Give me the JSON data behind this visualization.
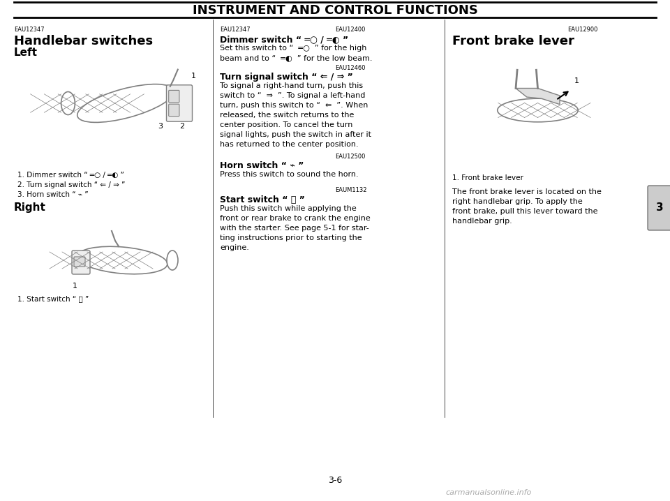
{
  "title": "INSTRUMENT AND CONTROL FUNCTIONS",
  "bg_color": "#ffffff",
  "title_color": "#000000",
  "body_color": "#000000",
  "page_number": "3-6",
  "tab_label": "3",
  "left_col": {
    "section_code": "EAU12347",
    "section_title": "Handlebar switches",
    "subsection1": "Left",
    "left_items": [
      "1. Dimmer switch “ ═○ / ═◐ ”",
      "2. Turn signal switch “ ⇐ / ⇒ ”",
      "3. Horn switch “ ⌁ ”"
    ],
    "subsection2": "Right",
    "right_items": [
      "1. Start switch “ Ⓢ ”"
    ]
  },
  "mid_col": {
    "code1": "EAU12400",
    "head1": "Dimmer switch",
    "sym1": "“ ═○ / ═◐ ”",
    "body1": "Set this switch to “  ═○  ” for the high\nbeam and to “  ═◐  ” for the low beam.",
    "code2": "EAU12460",
    "head2": "Turn signal switch",
    "sym2": "“ ⇐ / ⇒ ”",
    "body2": "To signal a right-hand turn, push this\nswitch to “  ⇒  ”. To signal a left-hand\nturn, push this switch to “  ⇐  ”. When\nreleased, the switch returns to the\ncenter position. To cancel the turn\nsignal lights, push the switch in after it\nhas returned to the center position.",
    "code3": "EAU12500",
    "head3": "Horn switch",
    "sym3": "“ ⌁ ”",
    "body3": "Press this switch to sound the horn.",
    "code4": "EAUM1132",
    "head4": "Start switch",
    "sym4": "“ Ⓢ ”",
    "body4": "Push this switch while applying the\nfront or rear brake to crank the engine\nwith the starter. See page 5-1 for star-\nting instructions prior to starting the\nengine."
  },
  "right_col": {
    "code": "EAU12900",
    "head": "Front brake lever",
    "caption": "1. Front brake lever",
    "body": "The front brake lever is located on the\nright handlebar grip. To apply the\nfront brake, pull this lever toward the\nhandlebar grip."
  }
}
